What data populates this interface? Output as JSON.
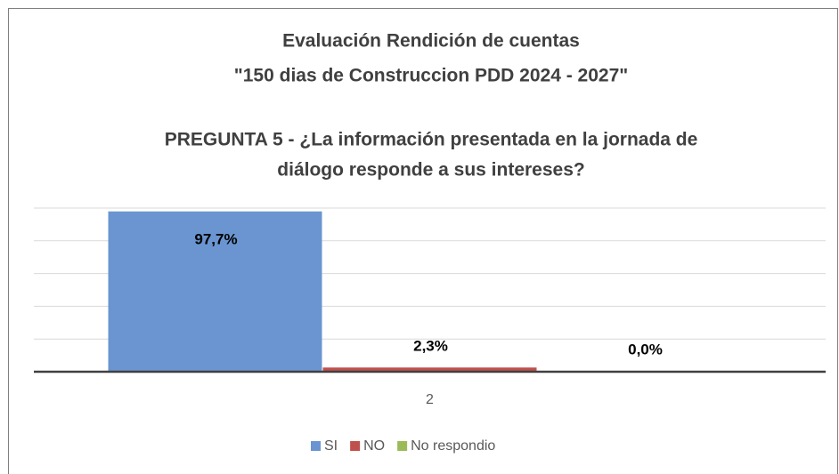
{
  "chart_data": {
    "type": "bar",
    "title": [
      "Evaluación Rendición de cuentas",
      "\"150 dias de Construccion PDD 2024 - 2027\"",
      "PREGUNTA 5 - ¿La información presentada en la jornada de",
      "diálogo responde a sus intereses?"
    ],
    "categories": [
      "2"
    ],
    "series": [
      {
        "name": "SI",
        "color": "#6a95d0",
        "values": [
          97.7
        ],
        "value_labels": [
          "97,7%"
        ]
      },
      {
        "name": "NO",
        "color": "#c0504d",
        "values": [
          2.3
        ],
        "value_labels": [
          "2,3%"
        ]
      },
      {
        "name": "No respondio",
        "color": "#9bbb59",
        "values": [
          0.0
        ],
        "value_labels": [
          "0,0%"
        ]
      }
    ],
    "ylim": [
      0,
      100
    ],
    "yticks": [
      0,
      20,
      40,
      60,
      80,
      100
    ],
    "grid": true,
    "legend": "bottom"
  }
}
